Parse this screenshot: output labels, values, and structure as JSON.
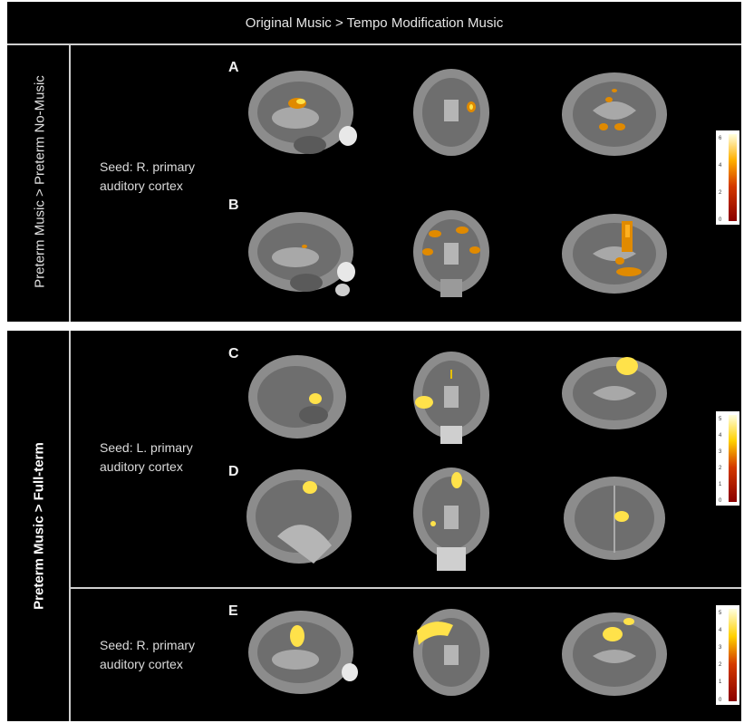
{
  "figure": {
    "header": "Original Music > Tempo Modification Music",
    "panel_top_label": "Preterm Music > Preterm No-Music",
    "panel_bottom_label": "Preterm Music >  Full-term",
    "seeds": {
      "top": [
        "Seed: R. primary",
        "auditory cortex"
      ],
      "middle": [
        "Seed:  L. primary",
        "auditory cortex"
      ],
      "bottom": [
        "Seed: R. primary",
        "auditory cortex"
      ]
    },
    "rows": [
      "A",
      "B",
      "C",
      "D",
      "E"
    ],
    "views": [
      "sagittal",
      "coronal",
      "axial"
    ],
    "colorbars": [
      {
        "ticks": [
          "6",
          "4",
          "2",
          "0"
        ]
      },
      {
        "ticks": [
          "5",
          "4",
          "3",
          "2",
          "1",
          "0"
        ]
      },
      {
        "ticks": [
          "5",
          "4",
          "3",
          "2",
          "1",
          "0"
        ]
      }
    ],
    "colors": {
      "activation_light": "#ffe24a",
      "activation_dark": "#e08a00",
      "scan_gray": "#9a9a9a"
    }
  }
}
